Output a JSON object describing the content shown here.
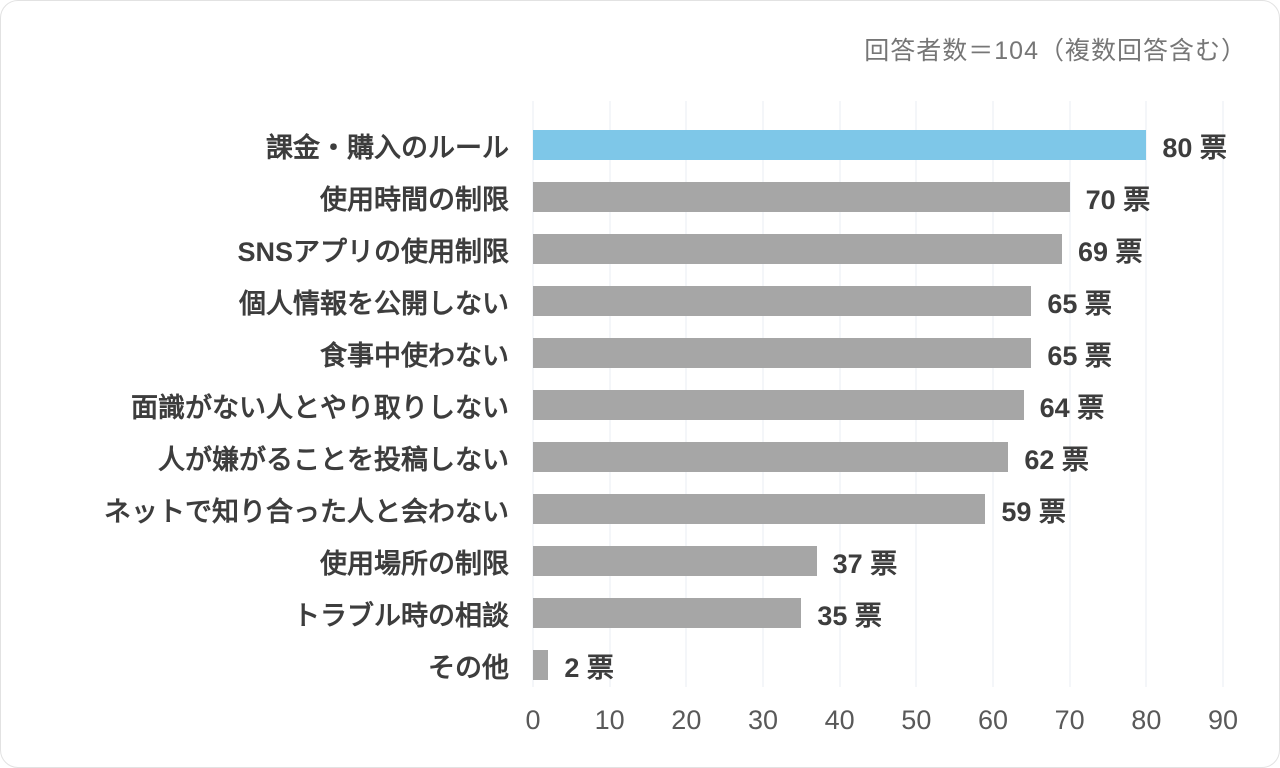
{
  "header": {
    "note": "回答者数＝104（複数回答含む）"
  },
  "chart_data": {
    "type": "bar",
    "orientation": "horizontal",
    "annotation": "回答者数＝104（複数回答含む）",
    "categories": [
      "課金・購入のルール",
      "使用時間の制限",
      "SNSアプリの使用制限",
      "個人情報を公開しない",
      "食事中使わない",
      "面識がない人とやり取りしない",
      "人が嫌がることを投稿しない",
      "ネットで知り合った人と会わない",
      "使用場所の制限",
      "トラブル時の相談",
      "その他"
    ],
    "values": [
      80,
      70,
      69,
      65,
      65,
      64,
      62,
      59,
      37,
      35,
      2
    ],
    "value_suffix": "票",
    "xlim": [
      0,
      90
    ],
    "xticks": [
      0,
      10,
      20,
      30,
      40,
      50,
      60,
      70,
      80,
      90
    ],
    "highlight_index": 0,
    "grid": true,
    "legend": "none",
    "title": "",
    "xlabel": "",
    "ylabel": "",
    "colors": {
      "highlight": "#7ec7e8",
      "default": "#a6a6a6",
      "gridline": "#e8eef3",
      "label": "#3d3d3d",
      "axis_text": "#595959",
      "note_text": "#767676"
    }
  }
}
